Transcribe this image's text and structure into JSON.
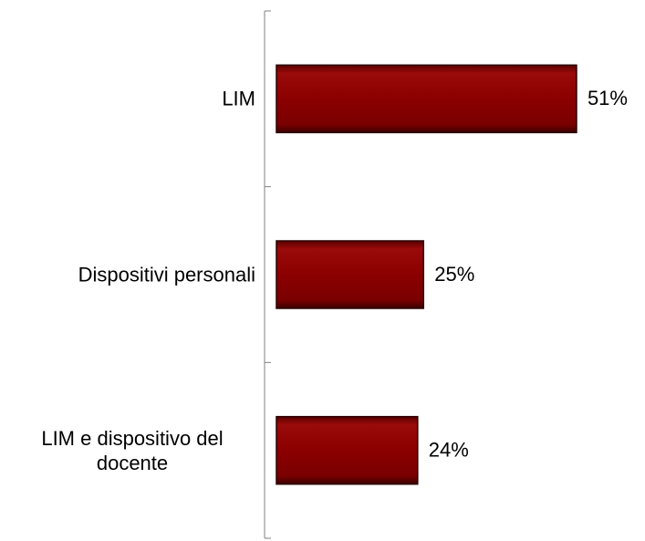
{
  "chart_data": {
    "type": "bar",
    "orientation": "horizontal",
    "categories": [
      "LIM",
      "Dispositivi personali",
      "LIM e dispositivo del docente"
    ],
    "values": [
      51,
      25,
      24
    ],
    "value_labels": [
      "51%",
      "25%",
      "24%"
    ],
    "color": "#8b0000"
  }
}
